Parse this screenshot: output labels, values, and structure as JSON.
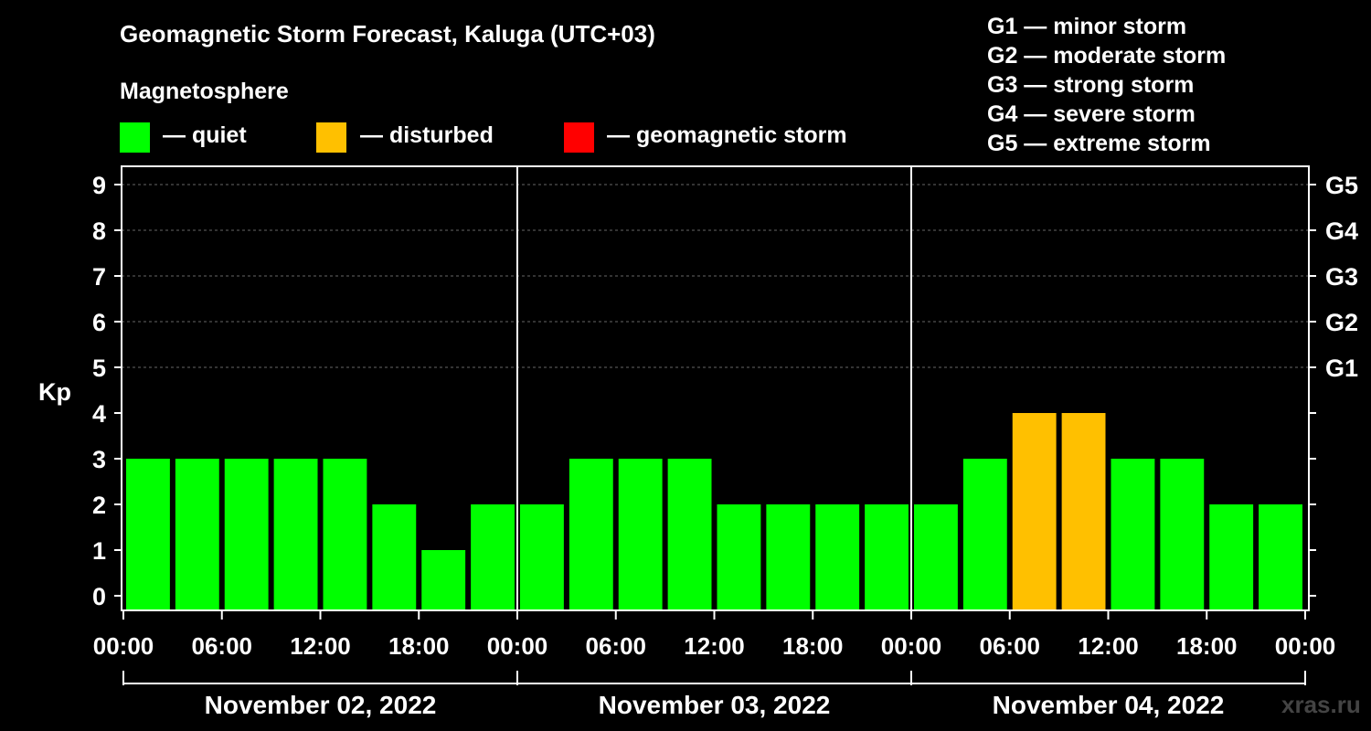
{
  "title": "Geomagnetic Storm Forecast, Kaluga (UTC+03)",
  "subtitle": "Magnetosphere",
  "legend": [
    {
      "label": "— quiet",
      "color": "#00ff00"
    },
    {
      "label": "— disturbed",
      "color": "#ffc000"
    },
    {
      "label": "— geomagnetic storm",
      "color": "#ff0000"
    }
  ],
  "storm_scale": [
    "G1 — minor storm",
    "G2 — moderate storm",
    "G3 — strong storm",
    "G4 — severe storm",
    "G5 — extreme storm"
  ],
  "watermark": "xras.ru",
  "chart_data": {
    "type": "bar",
    "title": "Geomagnetic Storm Forecast, Kaluga (UTC+03)",
    "ylabel": "Kp",
    "ylim": [
      0,
      9
    ],
    "y_ticks": [
      "0",
      "1",
      "2",
      "3",
      "4",
      "5",
      "6",
      "7",
      "8",
      "9"
    ],
    "right_ticks": [
      {
        "kp": 5,
        "label": "G1"
      },
      {
        "kp": 6,
        "label": "G2"
      },
      {
        "kp": 7,
        "label": "G3"
      },
      {
        "kp": 8,
        "label": "G4"
      },
      {
        "kp": 9,
        "label": "G5"
      }
    ],
    "x_tick_labels": [
      "00:00",
      "06:00",
      "12:00",
      "18:00",
      "00:00",
      "06:00",
      "12:00",
      "18:00",
      "00:00",
      "06:00",
      "12:00",
      "18:00",
      "00:00"
    ],
    "days": [
      "November 02, 2022",
      "November 03, 2022",
      "November 04, 2022"
    ],
    "interval_hours": 3,
    "values": [
      3,
      3,
      3,
      3,
      3,
      2,
      1,
      2,
      2,
      3,
      3,
      3,
      2,
      2,
      2,
      2,
      2,
      3,
      4,
      4,
      3,
      3,
      2,
      2
    ],
    "thresholds": {
      "disturbed": 4,
      "storm": 5
    },
    "colors": {
      "quiet": "#00ff00",
      "disturbed": "#ffc000",
      "storm": "#ff0000"
    }
  }
}
